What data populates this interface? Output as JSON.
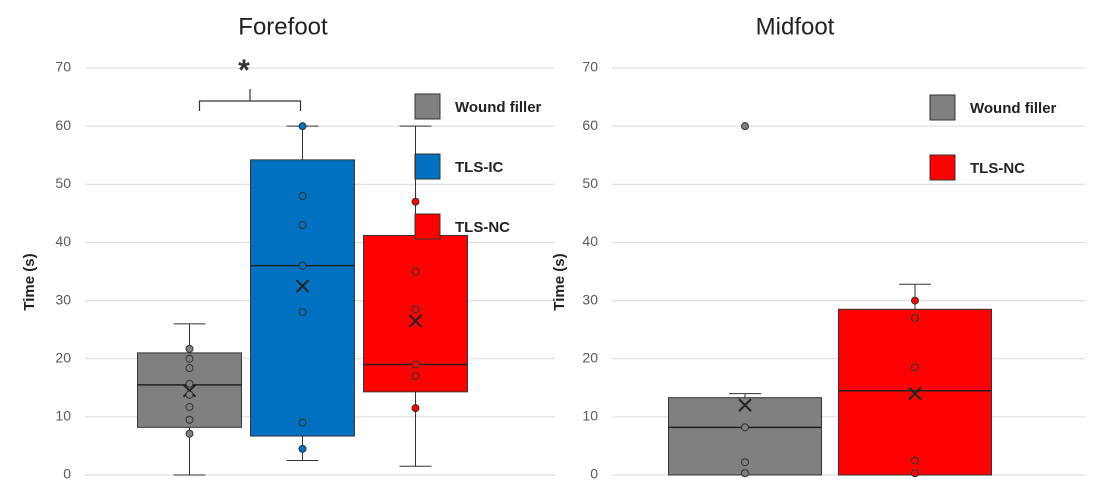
{
  "chart_data": [
    {
      "type": "box",
      "title": "Forefoot",
      "y_label": "Time (s)",
      "annotation": "*",
      "ylim": [
        0,
        70
      ],
      "yticks": [
        0,
        10,
        20,
        30,
        40,
        50,
        60,
        70
      ],
      "grid": true,
      "legend": "upper right",
      "series": [
        {
          "name": "Wound filler",
          "color": "#808080",
          "whisker_low": 0,
          "q1": 8.2,
          "median": 15.5,
          "q3": 21,
          "whisker_high": 26,
          "mean": 14.5,
          "points": [
            21.7,
            20,
            18.4,
            15.7,
            13.8,
            11.7,
            9.5,
            7.1
          ]
        },
        {
          "name": "TLS-IC",
          "color": "#0070c0",
          "whisker_low": 2.5,
          "q1": 6.7,
          "median": 36,
          "q3": 54.2,
          "whisker_high": 60,
          "mean": 32.5,
          "points": [
            60,
            48,
            43,
            36,
            28,
            9,
            4.5
          ]
        },
        {
          "name": "TLS-NC",
          "color": "#ff0000",
          "whisker_low": 1.5,
          "q1": 14.3,
          "median": 19,
          "q3": 41.2,
          "whisker_high": 60,
          "mean": 26.5,
          "points": [
            47,
            35,
            28.5,
            19,
            17,
            11.5
          ]
        }
      ]
    },
    {
      "type": "box",
      "title": "Midfoot",
      "y_label": "Time (s)",
      "ylim": [
        0,
        70
      ],
      "yticks": [
        0,
        10,
        20,
        30,
        40,
        50,
        60,
        70
      ],
      "grid": true,
      "legend": "upper right",
      "series": [
        {
          "name": "Wound filler",
          "color": "#808080",
          "whisker_low": 0,
          "q1": 0,
          "median": 8.2,
          "q3": 13.3,
          "whisker_high": 14,
          "mean": 12,
          "points": [
            60,
            8.2,
            2.2,
            0.3
          ]
        },
        {
          "name": "TLS-NC",
          "color": "#ff0000",
          "whisker_low": 0,
          "q1": 0,
          "median": 14.5,
          "q3": 28.5,
          "whisker_high": 32.8,
          "mean": 14,
          "points": [
            30,
            27,
            18.5,
            2.5,
            0.3
          ]
        }
      ]
    }
  ]
}
